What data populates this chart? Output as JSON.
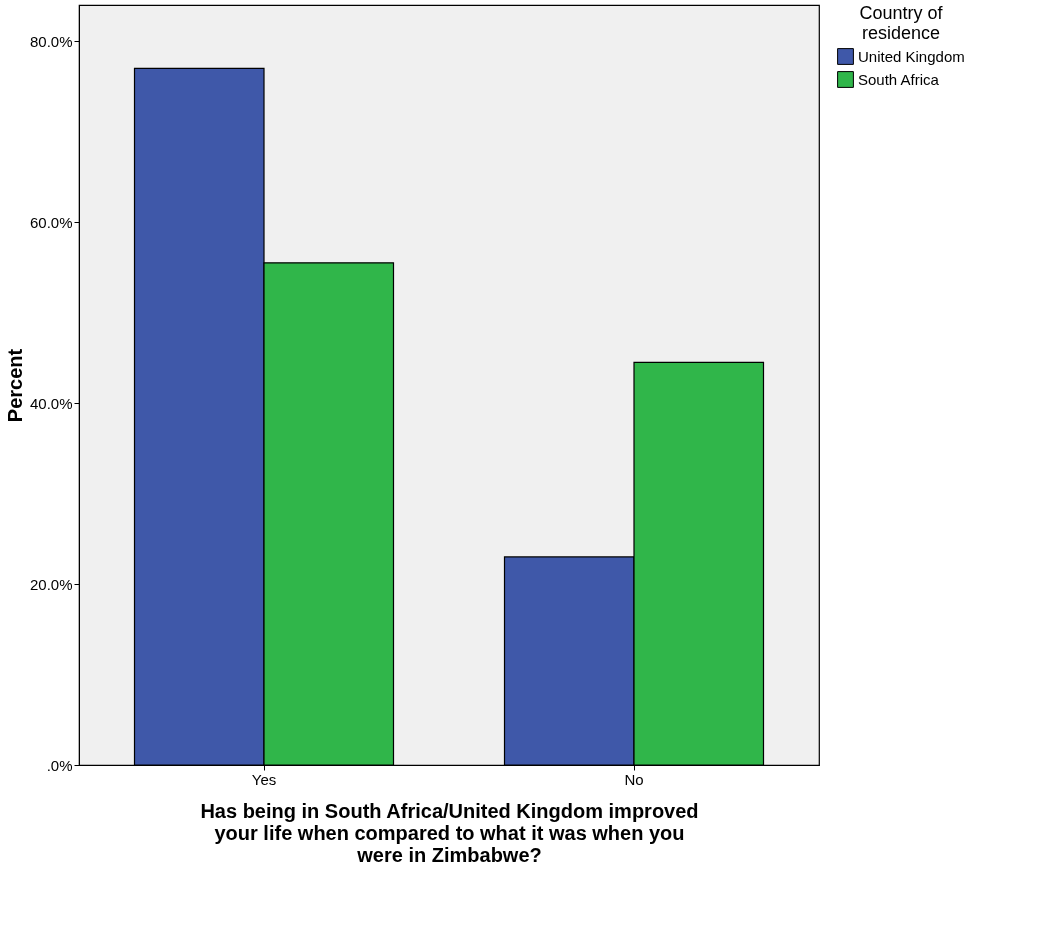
{
  "chart_data": {
    "type": "bar",
    "xlabel": "Has being in South Africa/United Kingdom improved your life when compared to what it was when you were in Zimbabwe?",
    "ylabel": "Percent",
    "legend_title": "Country of residence",
    "categories": [
      "Yes",
      "No"
    ],
    "series": [
      {
        "name": "United Kingdom",
        "color": "#3f58a9",
        "values": [
          77.0,
          23.0
        ]
      },
      {
        "name": "South Africa",
        "color": "#30b64a",
        "values": [
          55.5,
          44.5
        ]
      }
    ],
    "ylim": [
      0,
      84
    ],
    "yticks": [
      {
        "value": 0,
        "label": ".0%"
      },
      {
        "value": 20,
        "label": "20.0%"
      },
      {
        "value": 40,
        "label": "40.0%"
      },
      {
        "value": 60,
        "label": "60.0%"
      },
      {
        "value": 80,
        "label": "80.0%"
      }
    ],
    "grid": false,
    "legend": "right"
  }
}
